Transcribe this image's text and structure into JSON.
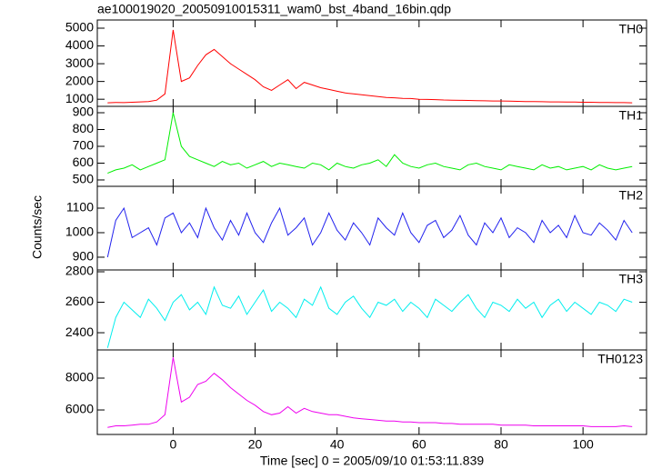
{
  "chart_data": [
    {
      "type": "line",
      "title": "ae100019020_20050910015311_wam0_bst_4band_16bin.qdp",
      "x": [
        -16,
        -14,
        -12,
        -10,
        -8,
        -6,
        -4,
        -2,
        0,
        2,
        4,
        6,
        8,
        10,
        12,
        14,
        16,
        18,
        20,
        22,
        24,
        26,
        28,
        30,
        32,
        34,
        36,
        38,
        40,
        42,
        44,
        46,
        48,
        50,
        52,
        54,
        56,
        58,
        60,
        62,
        64,
        66,
        68,
        70,
        72,
        74,
        76,
        78,
        80,
        82,
        84,
        86,
        88,
        90,
        92,
        94,
        96,
        98,
        100,
        102,
        104,
        106,
        108,
        110,
        112
      ],
      "series": [
        {
          "name": "TH0",
          "color": "#ff0000",
          "values": [
            800,
            820,
            810,
            830,
            850,
            870,
            950,
            1300,
            4900,
            2000,
            2200,
            2900,
            3500,
            3800,
            3400,
            3000,
            2700,
            2400,
            2100,
            1700,
            1500,
            1800,
            2100,
            1600,
            1950,
            1800,
            1650,
            1550,
            1450,
            1350,
            1300,
            1250,
            1200,
            1150,
            1100,
            1080,
            1050,
            1040,
            1000,
            990,
            980,
            960,
            950,
            940,
            930,
            920,
            910,
            900,
            900,
            890,
            880,
            870,
            870,
            860,
            850,
            850,
            840,
            840,
            830,
            830,
            820,
            820,
            810,
            810,
            800
          ]
        }
      ],
      "xlim": [
        -18.5,
        115.5
      ],
      "xticks": [
        0,
        20,
        40,
        60,
        80,
        100
      ],
      "ylim": [
        600,
        5460
      ],
      "yticks": [
        1000,
        2000,
        3000,
        4000,
        5000
      ]
    },
    {
      "type": "line",
      "x": [
        -16,
        -14,
        -12,
        -10,
        -8,
        -6,
        -4,
        -2,
        0,
        2,
        4,
        6,
        8,
        10,
        12,
        14,
        16,
        18,
        20,
        22,
        24,
        26,
        28,
        30,
        32,
        34,
        36,
        38,
        40,
        42,
        44,
        46,
        48,
        50,
        52,
        54,
        56,
        58,
        60,
        62,
        64,
        66,
        68,
        70,
        72,
        74,
        76,
        78,
        80,
        82,
        84,
        86,
        88,
        90,
        92,
        94,
        96,
        98,
        100,
        102,
        104,
        106,
        108,
        110,
        112
      ],
      "series": [
        {
          "name": "TH1",
          "color": "#00ee00",
          "values": [
            540,
            560,
            570,
            590,
            560,
            580,
            600,
            620,
            900,
            700,
            640,
            620,
            600,
            580,
            610,
            590,
            600,
            570,
            590,
            610,
            580,
            600,
            590,
            580,
            570,
            600,
            590,
            560,
            600,
            580,
            570,
            590,
            600,
            620,
            580,
            650,
            600,
            580,
            570,
            590,
            600,
            580,
            570,
            560,
            590,
            600,
            580,
            570,
            560,
            590,
            580,
            570,
            560,
            590,
            570,
            580,
            560,
            570,
            580,
            560,
            590,
            570,
            560,
            570,
            580
          ]
        }
      ],
      "xlim": [
        -18.5,
        115.5
      ],
      "xticks": [
        0,
        20,
        40,
        60,
        80,
        100
      ],
      "ylim": [
        462,
        938
      ],
      "yticks": [
        500,
        600,
        700,
        800,
        900
      ]
    },
    {
      "type": "line",
      "ylabel": "Counts/sec",
      "x": [
        -16,
        -14,
        -12,
        -10,
        -8,
        -6,
        -4,
        -2,
        0,
        2,
        4,
        6,
        8,
        10,
        12,
        14,
        16,
        18,
        20,
        22,
        24,
        26,
        28,
        30,
        32,
        34,
        36,
        38,
        40,
        42,
        44,
        46,
        48,
        50,
        52,
        54,
        56,
        58,
        60,
        62,
        64,
        66,
        68,
        70,
        72,
        74,
        76,
        78,
        80,
        82,
        84,
        86,
        88,
        90,
        92,
        94,
        96,
        98,
        100,
        102,
        104,
        106,
        108,
        110,
        112
      ],
      "series": [
        {
          "name": "TH2",
          "color": "#2222ee",
          "values": [
            900,
            1050,
            1100,
            980,
            1000,
            1020,
            950,
            1060,
            1080,
            1000,
            1040,
            980,
            1100,
            1020,
            970,
            1050,
            990,
            1080,
            1000,
            960,
            1040,
            1100,
            990,
            1020,
            1060,
            950,
            1000,
            1080,
            1010,
            970,
            1040,
            1000,
            950,
            1060,
            1020,
            990,
            1080,
            1000,
            960,
            1030,
            1050,
            980,
            1010,
            1070,
            990,
            950,
            1040,
            1000,
            1060,
            980,
            1020,
            1000,
            960,
            1050,
            1000,
            1030,
            980,
            1070,
            1000,
            990,
            1040,
            1010,
            970,
            1050,
            1000
          ]
        }
      ],
      "xlim": [
        -18.5,
        115.5
      ],
      "xticks": [
        0,
        20,
        40,
        60,
        80,
        100
      ],
      "ylim": [
        848,
        1189
      ],
      "yticks": [
        900,
        1000,
        1100
      ]
    },
    {
      "type": "line",
      "x": [
        -16,
        -14,
        -12,
        -10,
        -8,
        -6,
        -4,
        -2,
        0,
        2,
        4,
        6,
        8,
        10,
        12,
        14,
        16,
        18,
        20,
        22,
        24,
        26,
        28,
        30,
        32,
        34,
        36,
        38,
        40,
        42,
        44,
        46,
        48,
        50,
        52,
        54,
        56,
        58,
        60,
        62,
        64,
        66,
        68,
        70,
        72,
        74,
        76,
        78,
        80,
        82,
        84,
        86,
        88,
        90,
        92,
        94,
        96,
        98,
        100,
        102,
        104,
        106,
        108,
        110,
        112
      ],
      "series": [
        {
          "name": "TH3",
          "color": "#00eeee",
          "values": [
            2300,
            2500,
            2600,
            2550,
            2500,
            2620,
            2560,
            2480,
            2600,
            2650,
            2550,
            2600,
            2520,
            2700,
            2580,
            2560,
            2640,
            2520,
            2600,
            2680,
            2540,
            2600,
            2560,
            2500,
            2620,
            2580,
            2700,
            2560,
            2520,
            2600,
            2640,
            2560,
            2500,
            2600,
            2580,
            2620,
            2540,
            2600,
            2560,
            2500,
            2620,
            2580,
            2540,
            2600,
            2650,
            2560,
            2500,
            2600,
            2580,
            2540,
            2620,
            2560,
            2600,
            2500,
            2580,
            2620,
            2540,
            2600,
            2560,
            2520,
            2600,
            2580,
            2540,
            2620,
            2600
          ]
        }
      ],
      "xlim": [
        -18.5,
        115.5
      ],
      "xticks": [
        0,
        20,
        40,
        60,
        80,
        100
      ],
      "ylim": [
        2287,
        2812
      ],
      "yticks": [
        2400,
        2600,
        2800
      ]
    },
    {
      "type": "line",
      "xlabel": "Time [sec] 0 = 2005/09/10 01:53:11.839",
      "x": [
        -16,
        -14,
        -12,
        -10,
        -8,
        -6,
        -4,
        -2,
        0,
        2,
        4,
        6,
        8,
        10,
        12,
        14,
        16,
        18,
        20,
        22,
        24,
        26,
        28,
        30,
        32,
        34,
        36,
        38,
        40,
        42,
        44,
        46,
        48,
        50,
        52,
        54,
        56,
        58,
        60,
        62,
        64,
        66,
        68,
        70,
        72,
        74,
        76,
        78,
        80,
        82,
        84,
        86,
        88,
        90,
        92,
        94,
        96,
        98,
        100,
        102,
        104,
        106,
        108,
        110,
        112
      ],
      "series": [
        {
          "name": "TH0123",
          "color": "#ee00ee",
          "values": [
            4900,
            5000,
            5000,
            5050,
            5100,
            5100,
            5250,
            5700,
            9300,
            6500,
            6800,
            7600,
            7800,
            8300,
            7900,
            7400,
            7000,
            6600,
            6300,
            5900,
            5700,
            5800,
            6200,
            5800,
            6100,
            5900,
            5800,
            5700,
            5700,
            5600,
            5500,
            5450,
            5400,
            5350,
            5300,
            5300,
            5250,
            5250,
            5200,
            5200,
            5200,
            5150,
            5150,
            5100,
            5100,
            5100,
            5100,
            5100,
            5050,
            5050,
            5050,
            5050,
            5000,
            5000,
            5000,
            5000,
            5000,
            5000,
            5000,
            4950,
            4950,
            4950,
            4950,
            5000,
            4950
          ]
        }
      ],
      "xlim": [
        -18.5,
        115.5
      ],
      "xticks": [
        0,
        20,
        40,
        60,
        80,
        100
      ],
      "ylim": [
        4460,
        9770
      ],
      "yticks": [
        6000,
        8000
      ]
    }
  ]
}
